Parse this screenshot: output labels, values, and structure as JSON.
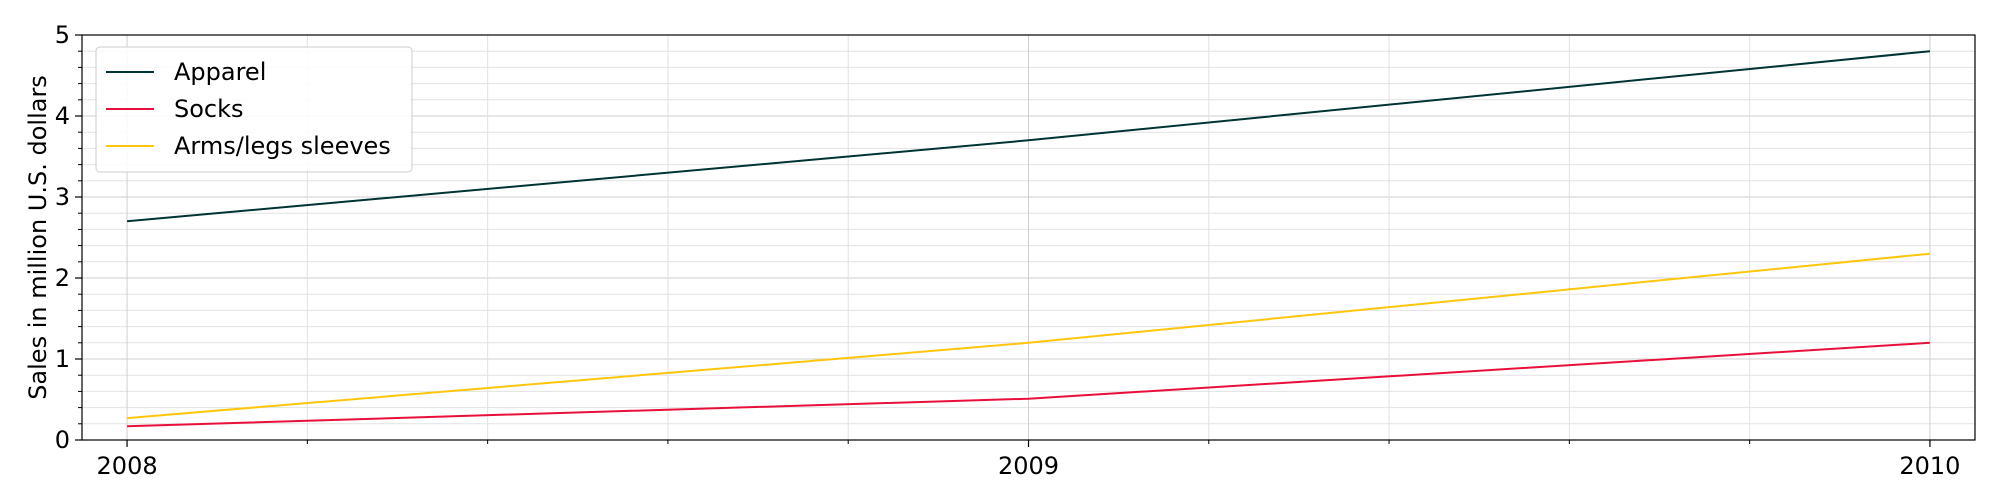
{
  "chart_data": {
    "type": "line",
    "title": "",
    "xlabel": "",
    "ylabel": "Sales in million U.S. dollars",
    "x": [
      2008,
      2009,
      2010
    ],
    "x_tick_labels": [
      "2008",
      "2009",
      "2010"
    ],
    "y_tick_labels": [
      "0",
      "1",
      "2",
      "3",
      "4",
      "5"
    ],
    "ylim": [
      0,
      5
    ],
    "xlim": [
      2007.95,
      2010.05
    ],
    "grid": true,
    "legend_position": "top-left",
    "series": [
      {
        "name": "Apparel",
        "color": "#003333",
        "values": [
          2.7,
          3.7,
          4.8
        ]
      },
      {
        "name": "Socks",
        "color": "#e8103a",
        "values": [
          0.17,
          0.51,
          1.2
        ]
      },
      {
        "name": "Arms/legs sleeves",
        "color": "#ffc60b",
        "values": [
          0.27,
          1.2,
          2.3
        ]
      }
    ]
  }
}
